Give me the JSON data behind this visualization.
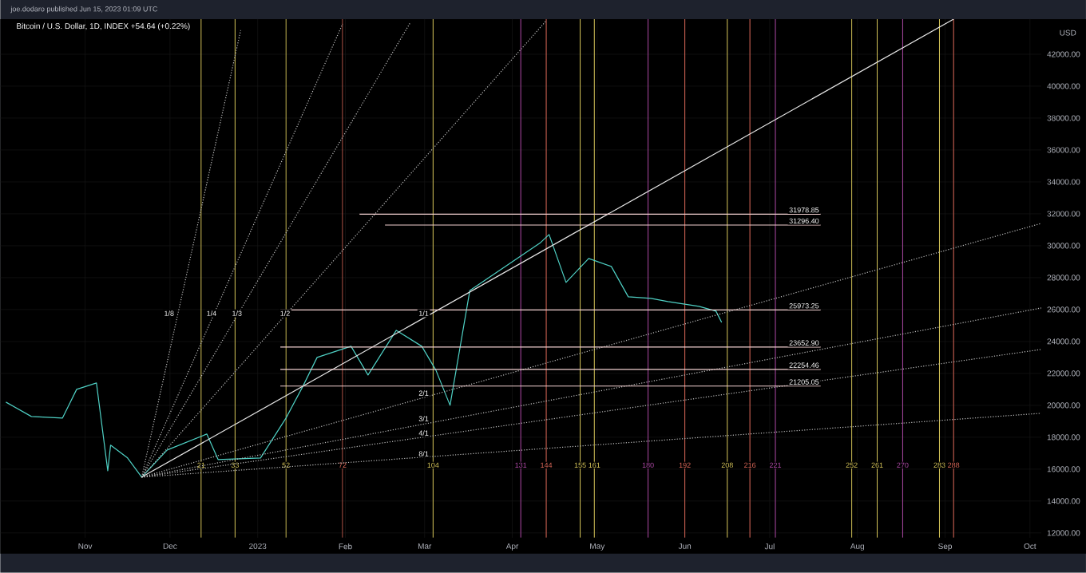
{
  "chart_data": {
    "type": "line",
    "title": "Bitcoin / U.S. Dollar, 1D, INDEX +54.64 (+0.22%)",
    "ylabel": "USD",
    "xlim": [
      "2022-10-02",
      "2023-10-05"
    ],
    "ylim": [
      11700,
      44200
    ],
    "xticks": [
      {
        "value": "2022-11-01",
        "label": "Nov"
      },
      {
        "value": "2022-12-01",
        "label": "Dec"
      },
      {
        "value": "2023-01-01",
        "label": "2023"
      },
      {
        "value": "2023-02-01",
        "label": "Feb"
      },
      {
        "value": "2023-03-01",
        "label": "Mar"
      },
      {
        "value": "2023-04-01",
        "label": "Apr"
      },
      {
        "value": "2023-05-01",
        "label": "May"
      },
      {
        "value": "2023-06-01",
        "label": "Jun"
      },
      {
        "value": "2023-07-01",
        "label": "Jul"
      },
      {
        "value": "2023-08-01",
        "label": "Aug"
      },
      {
        "value": "2023-09-01",
        "label": "Sep"
      },
      {
        "value": "2023-10-01",
        "label": "Oct"
      }
    ],
    "yticks": [
      {
        "value": 12000,
        "label": "12000.00"
      },
      {
        "value": 14000,
        "label": "14000.00"
      },
      {
        "value": 16000,
        "label": "16000.00"
      },
      {
        "value": 18000,
        "label": "18000.00"
      },
      {
        "value": 20000,
        "label": "20000.00"
      },
      {
        "value": 22000,
        "label": "22000.00"
      },
      {
        "value": 24000,
        "label": "24000.00"
      },
      {
        "value": 26000,
        "label": "26000.00"
      },
      {
        "value": 28000,
        "label": "28000.00"
      },
      {
        "value": 30000,
        "label": "30000.00"
      },
      {
        "value": 32000,
        "label": "32000.00"
      },
      {
        "value": 34000,
        "label": "34000.00"
      },
      {
        "value": 36000,
        "label": "36000.00"
      },
      {
        "value": 38000,
        "label": "38000.00"
      },
      {
        "value": 40000,
        "label": "40000.00"
      },
      {
        "value": 42000,
        "label": "42000.00"
      }
    ],
    "grid": true,
    "series": [
      {
        "color": "#4fd1c5",
        "line_style": "solid",
        "x": [
          "2022-10-04",
          "2022-10-13",
          "2022-10-24",
          "2022-10-29",
          "2022-11-05",
          "2022-11-09",
          "2022-11-10",
          "2022-11-16",
          "2022-11-21",
          "2022-11-30",
          "2022-12-14",
          "2022-12-18",
          "2023-01-02",
          "2023-01-11",
          "2023-01-17",
          "2023-01-22",
          "2023-02-03",
          "2023-02-09",
          "2023-02-19",
          "2023-02-28",
          "2023-03-05",
          "2023-03-10",
          "2023-03-17",
          "2023-04-11",
          "2023-04-14",
          "2023-04-20",
          "2023-04-28",
          "2023-05-06",
          "2023-05-12",
          "2023-05-20",
          "2023-05-26",
          "2023-06-06",
          "2023-06-12",
          "2023-06-14"
        ],
        "values": [
          20200,
          19300,
          19200,
          21000,
          21400,
          15900,
          17500,
          16700,
          15500,
          17200,
          18200,
          16600,
          16700,
          19200,
          21200,
          23000,
          23700,
          21900,
          24700,
          23700,
          22200,
          20000,
          27200,
          30200,
          30700,
          27700,
          29200,
          28700,
          26800,
          26700,
          26500,
          26200,
          25900,
          25200
        ]
      },
      {
        "color": "#e8e8e8",
        "line_style": "solid",
        "x": [
          "2022-11-21",
          "2023-09-04"
        ],
        "values": [
          15500,
          44200
        ]
      },
      {
        "color": "#bdbdbd",
        "line_style": "dotted",
        "x": [
          "2022-11-21",
          "2023-04-13"
        ],
        "values": [
          15500,
          44100
        ]
      },
      {
        "color": "#bdbdbd",
        "line_style": "dotted",
        "x": [
          "2022-11-21",
          "2023-02-24"
        ],
        "values": [
          15500,
          44000
        ]
      },
      {
        "color": "#bdbdbd",
        "line_style": "dotted",
        "x": [
          "2022-11-21",
          "2023-01-31"
        ],
        "values": [
          15500,
          43900
        ]
      },
      {
        "color": "#bdbdbd",
        "line_style": "dotted",
        "x": [
          "2022-11-21",
          "2022-12-26"
        ],
        "values": [
          15500,
          43500
        ]
      },
      {
        "color": "#bdbdbd",
        "line_style": "dotted",
        "x": [
          "2022-11-21",
          "2023-10-05"
        ],
        "values": [
          15500,
          31400
        ]
      },
      {
        "color": "#bdbdbd",
        "line_style": "dotted",
        "x": [
          "2022-11-21",
          "2023-10-05"
        ],
        "values": [
          15500,
          26100
        ]
      },
      {
        "color": "#bdbdbd",
        "line_style": "dotted",
        "x": [
          "2022-11-21",
          "2023-10-05"
        ],
        "values": [
          15500,
          23500
        ]
      },
      {
        "color": "#bdbdbd",
        "line_style": "dotted",
        "x": [
          "2022-11-21",
          "2023-10-05"
        ],
        "values": [
          15500,
          19500
        ]
      },
      {
        "color": "#f2d0d0",
        "line_style": "solid",
        "x": [
          "2023-02-06",
          "2023-07-19"
        ],
        "values": [
          31978.85,
          31978.85
        ]
      },
      {
        "color": "#f2d0d0",
        "line_style": "solid",
        "x": [
          "2023-02-15",
          "2023-07-19"
        ],
        "values": [
          31296.4,
          31296.4
        ]
      },
      {
        "color": "#f2d0d0",
        "line_style": "solid",
        "x": [
          "2023-01-09",
          "2023-07-19"
        ],
        "values": [
          25973.25,
          25973.25
        ]
      },
      {
        "color": "#f2d0d0",
        "line_style": "solid",
        "x": [
          "2023-01-09",
          "2023-07-19"
        ],
        "values": [
          23652.9,
          23652.9
        ]
      },
      {
        "color": "#f2d0d0",
        "line_style": "solid",
        "x": [
          "2023-01-09",
          "2023-07-19"
        ],
        "values": [
          22254.46,
          22254.46
        ]
      },
      {
        "color": "#f2d0d0",
        "line_style": "solid",
        "x": [
          "2023-01-09",
          "2023-07-19"
        ],
        "values": [
          21205.05,
          21205.05
        ]
      }
    ],
    "ref_lines": [
      {
        "axis": "x",
        "value": "2022-12-12",
        "label": "21",
        "color": "#d9c85a"
      },
      {
        "axis": "x",
        "value": "2022-12-24",
        "label": "33",
        "color": "#d9c85a"
      },
      {
        "axis": "x",
        "value": "2023-01-11",
        "label": "52",
        "color": "#d9c85a"
      },
      {
        "axis": "x",
        "value": "2023-01-31",
        "label": "72",
        "color": "#e06a5a"
      },
      {
        "axis": "x",
        "value": "2023-03-04",
        "label": "104",
        "color": "#d9c85a"
      },
      {
        "axis": "x",
        "value": "2023-04-04",
        "label": "131",
        "color": "#b04aa8"
      },
      {
        "axis": "x",
        "value": "2023-04-13",
        "label": "144",
        "color": "#e06a5a"
      },
      {
        "axis": "x",
        "value": "2023-04-25",
        "label": "155",
        "color": "#d9c85a"
      },
      {
        "axis": "x",
        "value": "2023-04-30",
        "label": "161",
        "color": "#d9c85a"
      },
      {
        "axis": "x",
        "value": "2023-05-19",
        "label": "180",
        "color": "#b04aa8"
      },
      {
        "axis": "x",
        "value": "2023-06-01",
        "label": "192",
        "color": "#e06a5a"
      },
      {
        "axis": "x",
        "value": "2023-06-16",
        "label": "208",
        "color": "#d9c85a"
      },
      {
        "axis": "x",
        "value": "2023-06-24",
        "label": "216",
        "color": "#e06a5a"
      },
      {
        "axis": "x",
        "value": "2023-07-03",
        "label": "221",
        "color": "#b04aa8"
      },
      {
        "axis": "x",
        "value": "2023-07-30",
        "label": "252",
        "color": "#d9c85a"
      },
      {
        "axis": "x",
        "value": "2023-08-08",
        "label": "261",
        "color": "#d9c85a"
      },
      {
        "axis": "x",
        "value": "2023-08-17",
        "label": "270",
        "color": "#b04aa8"
      },
      {
        "axis": "x",
        "value": "2023-08-30",
        "label": "283",
        "color": "#d9c85a"
      },
      {
        "axis": "x",
        "value": "2023-09-04",
        "label": "288",
        "color": "#e06a5a"
      }
    ],
    "annotations": [
      "joe.dodaro published Jun 15, 2023 01:09 UTC",
      {
        "text": "1/8",
        "x": "2022-12-03",
        "y": 25500
      },
      {
        "text": "1/4",
        "x": "2022-12-18",
        "y": 25500
      },
      {
        "text": "1/3",
        "x": "2022-12-27",
        "y": 25500
      },
      {
        "text": "1/2",
        "x": "2023-01-13",
        "y": 25500
      },
      {
        "text": "1/1",
        "x": "2023-03-03",
        "y": 25500
      },
      {
        "text": "2/1",
        "x": "2023-03-03",
        "y": 20500
      },
      {
        "text": "3/1",
        "x": "2023-03-03",
        "y": 18900
      },
      {
        "text": "4/1",
        "x": "2023-03-03",
        "y": 18000
      },
      {
        "text": "8/1",
        "x": "2023-03-03",
        "y": 16700
      },
      {
        "text": "31978.85",
        "x": "2023-07-19",
        "y": 31978.85
      },
      {
        "text": "31296.40",
        "x": "2023-07-19",
        "y": 31296.4
      },
      {
        "text": "25973.25",
        "x": "2023-07-19",
        "y": 25973.25
      },
      {
        "text": "23652.90",
        "x": "2023-07-19",
        "y": 23652.9
      },
      {
        "text": "22254.46",
        "x": "2023-07-19",
        "y": 22254.46
      },
      {
        "text": "21205.05",
        "x": "2023-07-19",
        "y": 21205.05
      }
    ]
  }
}
